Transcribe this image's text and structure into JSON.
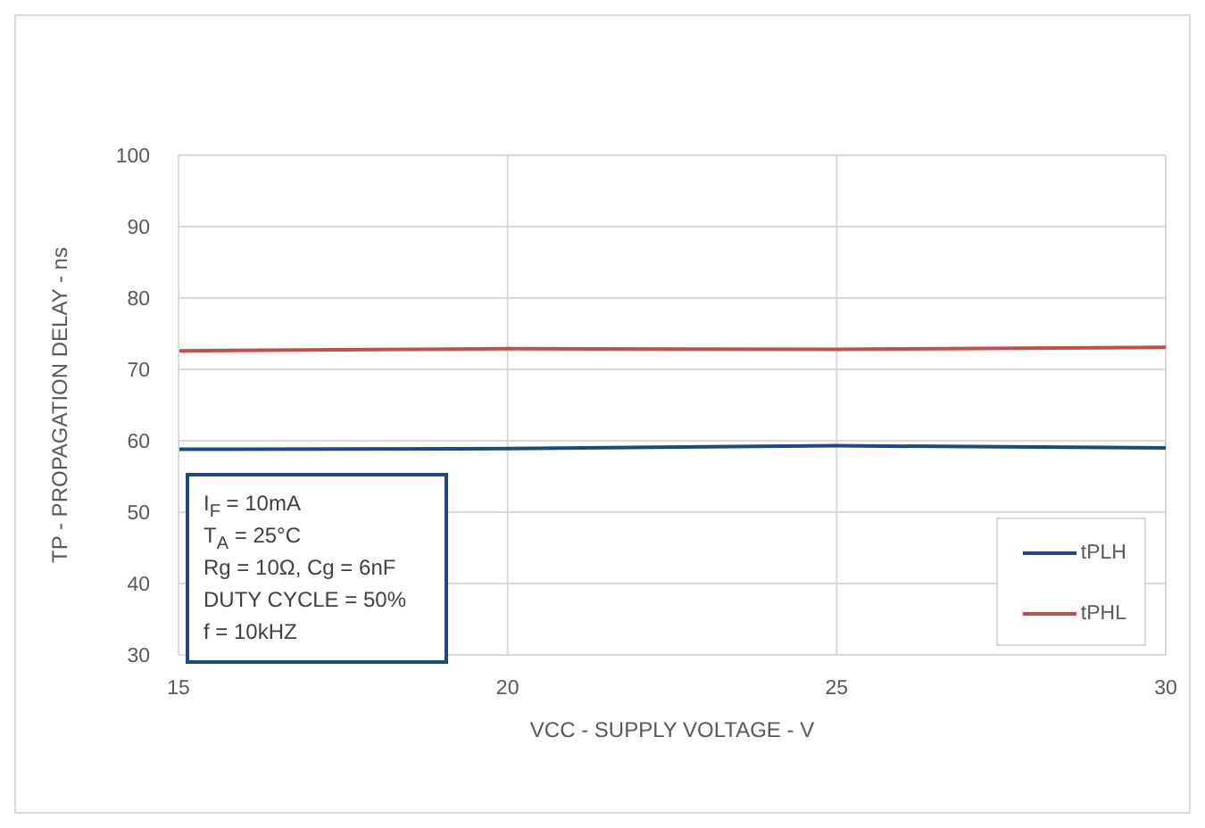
{
  "chart_data": {
    "type": "line",
    "xlabel": "VCC - SUPPLY VOLTAGE - V",
    "ylabel": "TP - PROPAGATION DELAY - ns",
    "x": [
      15,
      20,
      25,
      30
    ],
    "series": [
      {
        "name": "tPLH",
        "color": "#1f497d",
        "values": [
          58.8,
          58.9,
          59.3,
          59.0
        ]
      },
      {
        "name": "tPHL",
        "color": "#c0504d",
        "values": [
          72.6,
          72.9,
          72.8,
          73.1
        ]
      }
    ],
    "xlim": [
      15,
      30
    ],
    "xticks": [
      15,
      20,
      25,
      30
    ],
    "ylim": [
      30,
      100
    ],
    "yticks": [
      30,
      40,
      50,
      60,
      70,
      80,
      90,
      100
    ],
    "grid": true,
    "legend": "bottom right",
    "marker": "none",
    "line_style": "solid",
    "annotations": [
      "I$_{F}$ = 10mA",
      "T$_{A}$ = 25°C",
      "Rg = 10Ω, Cg = 6nF",
      "DUTY CYCLE = 50%",
      "f = 10kHZ"
    ]
  }
}
